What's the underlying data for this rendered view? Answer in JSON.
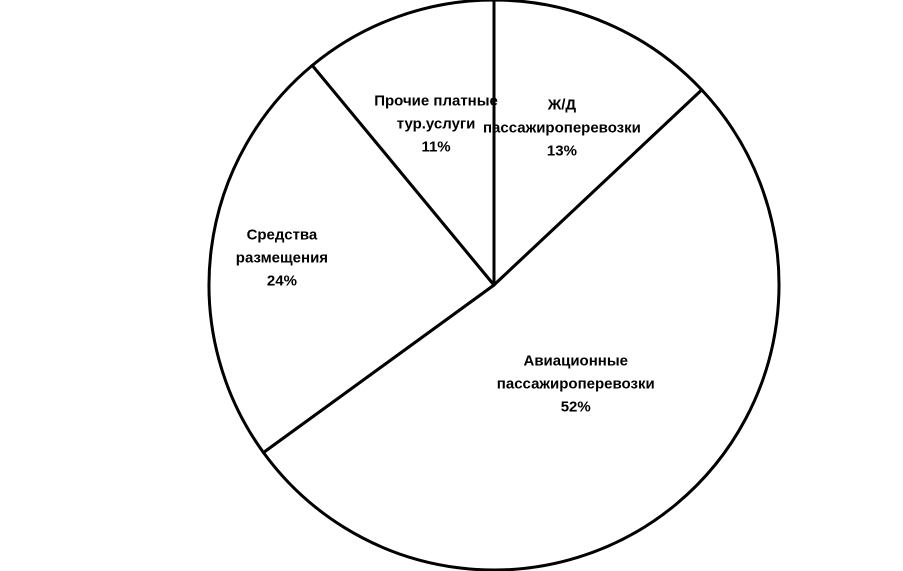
{
  "chart_data": {
    "type": "pie",
    "categories": [
      "Ж/Д пассажироперевозки",
      "Авиационные пассажироперевозки",
      "Средства размещения",
      "Прочие платные тур.услуги"
    ],
    "values": [
      13,
      52,
      24,
      11
    ],
    "value_labels": [
      "13%",
      "52%",
      "24%",
      "11%"
    ],
    "color": "#ffffff",
    "edge_color": "#000000"
  }
}
